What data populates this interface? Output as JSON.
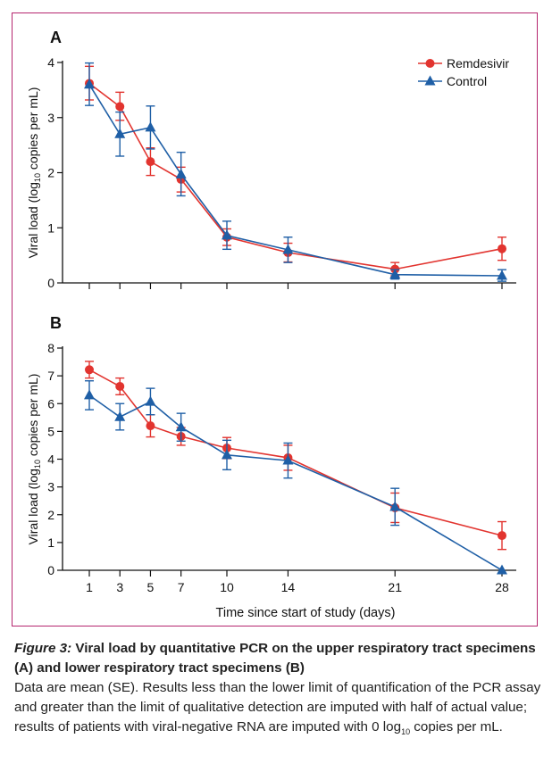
{
  "chart_data": [
    {
      "type": "line",
      "panel_label": "A",
      "ylabel": "Viral load (log10 copies per mL)",
      "ylabel_parts": {
        "before": "Viral load (log",
        "sub": "10",
        "after": " copies per mL)"
      },
      "xlabel": "",
      "categories": [
        "1",
        "3",
        "5",
        "7",
        "10",
        "14",
        "21",
        "28"
      ],
      "ylim": [
        0,
        4
      ],
      "yticks": [
        "0",
        "1",
        "2",
        "3",
        "4"
      ],
      "grid": false,
      "legend": "top-right",
      "series": [
        {
          "name": "Remdesivir",
          "color": "#e2342f",
          "marker": "circle",
          "values": [
            3.62,
            3.2,
            2.2,
            1.88,
            0.83,
            0.55,
            0.25,
            0.62
          ],
          "se_low": [
            3.32,
            2.95,
            1.95,
            1.65,
            0.68,
            0.38,
            0.13,
            0.41
          ],
          "se_high": [
            3.93,
            3.46,
            2.45,
            2.1,
            0.98,
            0.72,
            0.37,
            0.83
          ]
        },
        {
          "name": "Control",
          "color": "#1f5fa6",
          "marker": "triangle",
          "values": [
            3.6,
            2.7,
            2.82,
            1.97,
            0.86,
            0.6,
            0.15,
            0.13
          ],
          "se_low": [
            3.22,
            2.3,
            2.43,
            1.58,
            0.61,
            0.37,
            0.07,
            0.03
          ],
          "se_high": [
            3.99,
            3.1,
            3.21,
            2.37,
            1.12,
            0.83,
            0.24,
            0.24
          ]
        }
      ]
    },
    {
      "type": "line",
      "panel_label": "B",
      "ylabel": "Viral load (log10 copies per mL)",
      "ylabel_parts": {
        "before": "Viral load (log",
        "sub": "10",
        "after": " copies per mL)"
      },
      "xlabel": "Time since start of study (days)",
      "categories": [
        "1",
        "3",
        "5",
        "7",
        "10",
        "14",
        "21",
        "28"
      ],
      "ylim": [
        0,
        8
      ],
      "yticks": [
        "0",
        "1",
        "2",
        "3",
        "4",
        "5",
        "6",
        "7",
        "8"
      ],
      "grid": false,
      "series": [
        {
          "name": "Remdesivir",
          "color": "#e2342f",
          "marker": "circle",
          "values": [
            7.22,
            6.62,
            5.2,
            4.82,
            4.4,
            4.05,
            2.25,
            1.25
          ],
          "se_low": [
            6.92,
            6.32,
            4.8,
            4.5,
            4.02,
            3.6,
            1.72,
            0.75
          ],
          "se_high": [
            7.52,
            6.92,
            5.6,
            5.14,
            4.78,
            4.5,
            2.78,
            1.75
          ]
        },
        {
          "name": "Control",
          "color": "#1f5fa6",
          "marker": "triangle",
          "values": [
            6.3,
            5.52,
            6.07,
            5.15,
            4.15,
            3.95,
            2.28,
            0.0
          ],
          "se_low": [
            5.78,
            5.05,
            5.6,
            4.65,
            3.62,
            3.32,
            1.62,
            0.0
          ],
          "se_high": [
            6.82,
            6.0,
            6.55,
            5.65,
            4.68,
            4.58,
            2.95,
            0.0
          ]
        }
      ]
    }
  ],
  "caption": {
    "figure_label": "Figure 3:",
    "title": " Viral load by quantitative PCR on the upper respiratory tract specimens (A) and lower respiratory tract specimens (B)",
    "body_before": "Data are mean (SE). Results less than the lower limit of quantification of the PCR assay and greater than the limit of qualitative detection are imputed with half of actual value; results of patients with viral-negative RNA are imputed with 0 log",
    "body_sub": "10",
    "body_after": " copies per mL."
  },
  "colors": {
    "frame": "#b5266f",
    "remdesivir": "#e2342f",
    "control": "#1f5fa6",
    "axis": "#111111"
  }
}
